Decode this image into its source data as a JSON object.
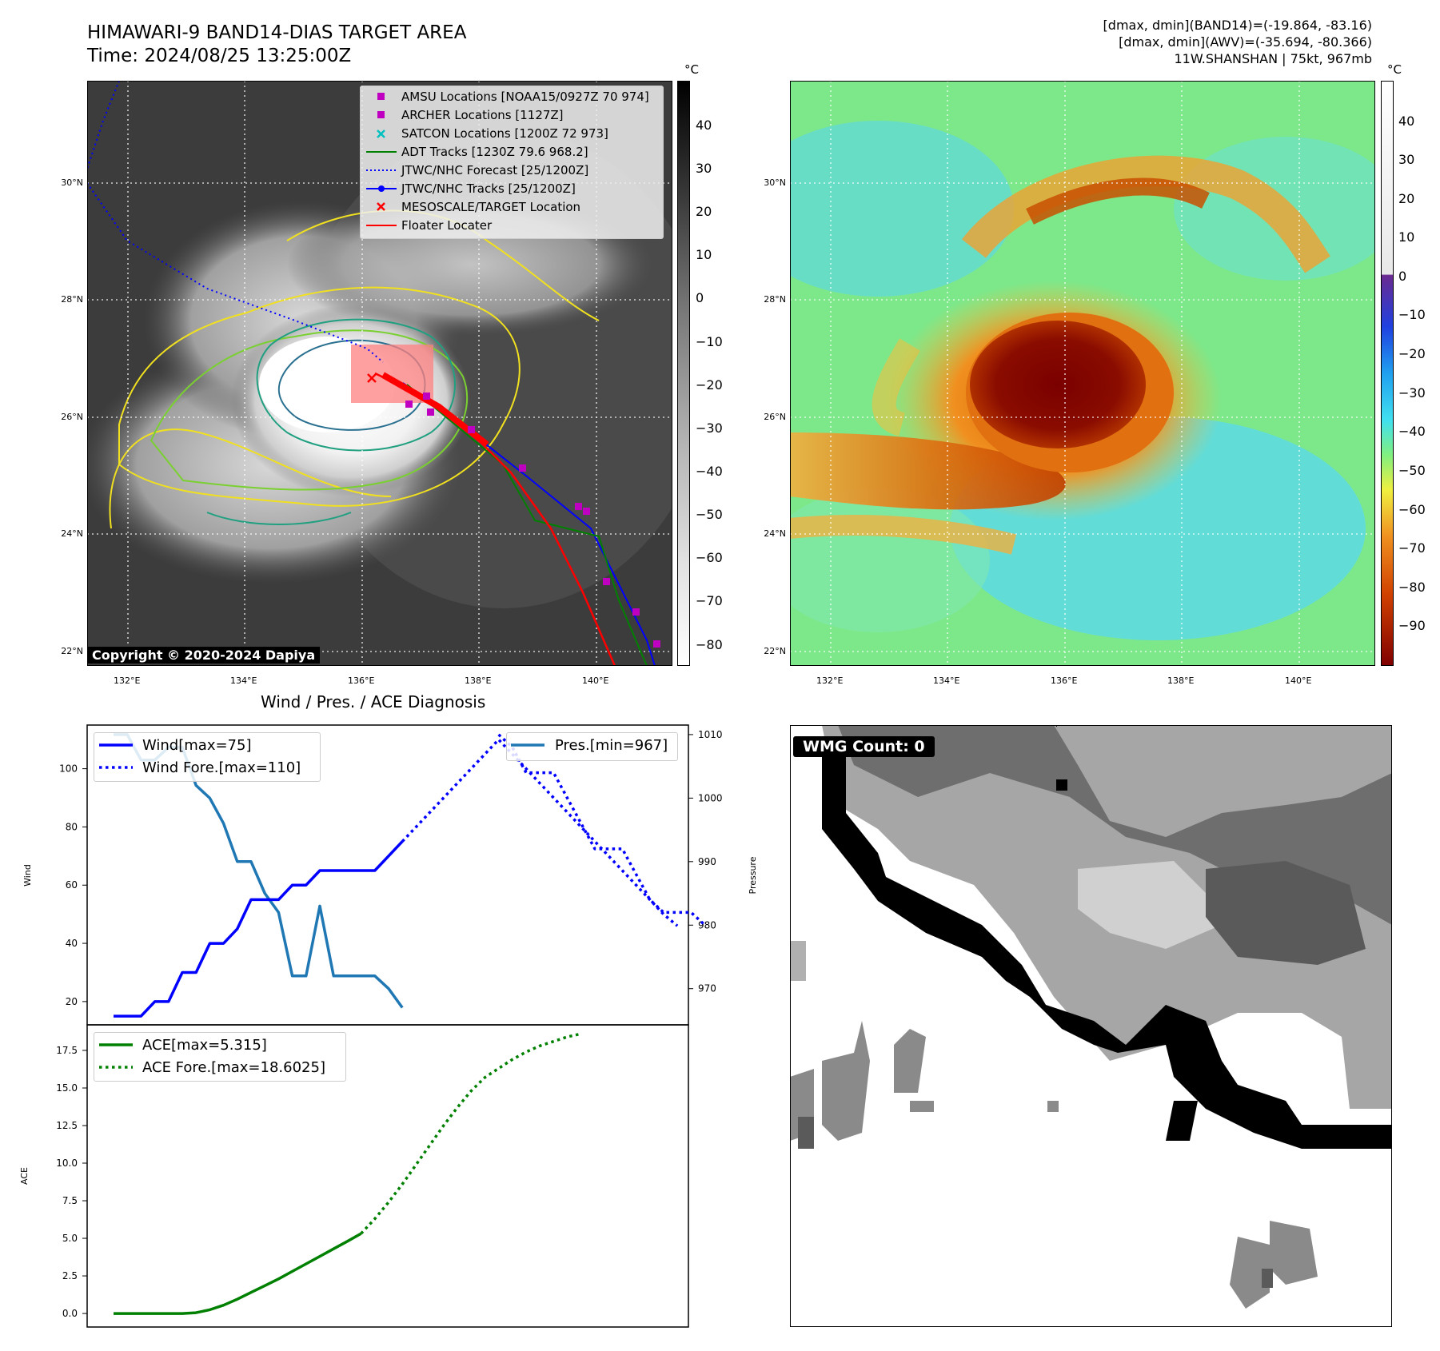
{
  "header": {
    "title": "HIMAWARI-9 BAND14-DIAS TARGET AREA",
    "time": "Time: 2024/08/25 13:25:00Z",
    "stat_band14": "[dmax, dmin](BAND14)=(-19.864, -83.16)",
    "stat_awv": "[dmax, dmin](AWV)=(-35.694, -80.366)",
    "storm": "11W.SHANSHAN | 75kt, 967mb"
  },
  "copyright": "Copyright © 2020-2024 Dapiya",
  "map": {
    "lon_ticks": [
      "132°E",
      "134°E",
      "136°E",
      "138°E",
      "140°E"
    ],
    "lat_ticks": [
      "30°N",
      "28°N",
      "26°N",
      "24°N",
      "22°N"
    ],
    "lon_range": [
      131.3,
      141.3
    ],
    "lat_range": [
      21.8,
      31.8
    ]
  },
  "colorbar_left": {
    "unit": "°C",
    "ticks": [
      "40",
      "30",
      "20",
      "10",
      "0",
      "−10",
      "−20",
      "−30",
      "−40",
      "−50",
      "−60",
      "−70",
      "−80"
    ]
  },
  "colorbar_right": {
    "unit": "°C",
    "ticks": [
      "40",
      "30",
      "20",
      "10",
      "0",
      "−10",
      "−20",
      "−30",
      "−40",
      "−50",
      "−60",
      "−70",
      "−80",
      "−90"
    ]
  },
  "legend": [
    {
      "label": "AMSU Locations [NOAA15/0927Z 70 974]",
      "kind": "square",
      "color": "#c000c0"
    },
    {
      "label": "ARCHER Locations [1127Z]",
      "kind": "square",
      "color": "#c000c0"
    },
    {
      "label": "SATCON Locations [1200Z 72 973]",
      "kind": "x",
      "color": "#00c0c0"
    },
    {
      "label": "ADT Tracks [1230Z 79.6 968.2]",
      "kind": "line",
      "color": "#008000"
    },
    {
      "label": "JTWC/NHC Forecast [25/1200Z]",
      "kind": "dotted",
      "color": "#0000ff"
    },
    {
      "label": "JTWC/NHC Tracks [25/1200Z]",
      "kind": "line-dot",
      "color": "#0000ff"
    },
    {
      "label": "MESOSCALE/TARGET Location",
      "kind": "x",
      "color": "#ff0000"
    },
    {
      "label": "Floater Locater",
      "kind": "line",
      "color": "#ff0000"
    }
  ],
  "wmg": {
    "label": "WMG Count: 0"
  },
  "chart_data": [
    {
      "type": "line",
      "title": "Wind / Pres. / ACE Diagnosis",
      "ylabel": "Wind",
      "ylim": [
        12,
        115
      ],
      "yticks": [
        "20",
        "40",
        "60",
        "80",
        "100"
      ],
      "legend": [
        "Wind[max=75]",
        "Wind Fore.[max=110]"
      ],
      "series": [
        {
          "name": "Wind[max=75]",
          "style": "solid",
          "color": "#0000ff",
          "values": [
            15,
            15,
            15,
            20,
            20,
            30,
            30,
            40,
            40,
            45,
            55,
            55,
            55,
            60,
            60,
            65,
            65,
            65,
            65,
            65,
            70,
            75
          ]
        },
        {
          "name": "Wind Fore.[max=110]",
          "style": "dotted",
          "color": "#0000ff",
          "offset": 21,
          "values": [
            75,
            80,
            85,
            90,
            95,
            100,
            105,
            110,
            105,
            100,
            95,
            90,
            85,
            80,
            75,
            70,
            65,
            60,
            55,
            50,
            46
          ]
        }
      ]
    },
    {
      "type": "line",
      "ylabel": "Pressure",
      "ylim": [
        964.3,
        1011.5
      ],
      "yticks": [
        "1010",
        "1000",
        "990",
        "980",
        "970"
      ],
      "legend": [
        "Pres.[min=967]"
      ],
      "series": [
        {
          "name": "Pres.[min=967]",
          "style": "solid",
          "color": "#1f77b4",
          "values": [
            1010,
            1010,
            1006,
            1006,
            1008,
            1008,
            1002,
            1000,
            996,
            990,
            990,
            985,
            982,
            972,
            972,
            983,
            972,
            972,
            972,
            972,
            970,
            967
          ]
        },
        {
          "name": "",
          "style": "dotted",
          "color": "#0000ff",
          "offset": 28,
          "values": [
            1010,
            1008,
            1004,
            1004,
            1004,
            1000,
            996,
            992,
            992,
            992,
            988,
            984,
            982,
            982,
            982,
            980
          ]
        }
      ]
    },
    {
      "type": "line",
      "ylabel": "ACE",
      "ylim": [
        -0.9,
        19.2
      ],
      "yticks": [
        "0.0",
        "2.5",
        "5.0",
        "7.5",
        "10.0",
        "12.5",
        "15.0",
        "17.5"
      ],
      "legend": [
        "ACE[max=5.315]",
        "ACE Fore.[max=18.6025]"
      ],
      "series": [
        {
          "name": "ACE[max=5.315]",
          "style": "solid",
          "color": "#008000",
          "values": [
            0,
            0,
            0,
            0,
            0,
            0,
            0.05,
            0.25,
            0.55,
            0.95,
            1.4,
            1.85,
            2.3,
            2.8,
            3.3,
            3.8,
            4.3,
            4.8,
            5.315
          ]
        },
        {
          "name": "ACE Fore.[max=18.6025]",
          "style": "dotted",
          "color": "#008000",
          "offset": 18,
          "values": [
            5.315,
            6.3,
            7.4,
            8.6,
            9.9,
            11.2,
            12.5,
            13.7,
            14.8,
            15.7,
            16.3,
            16.9,
            17.4,
            17.8,
            18.1,
            18.4,
            18.6025
          ]
        }
      ]
    }
  ]
}
